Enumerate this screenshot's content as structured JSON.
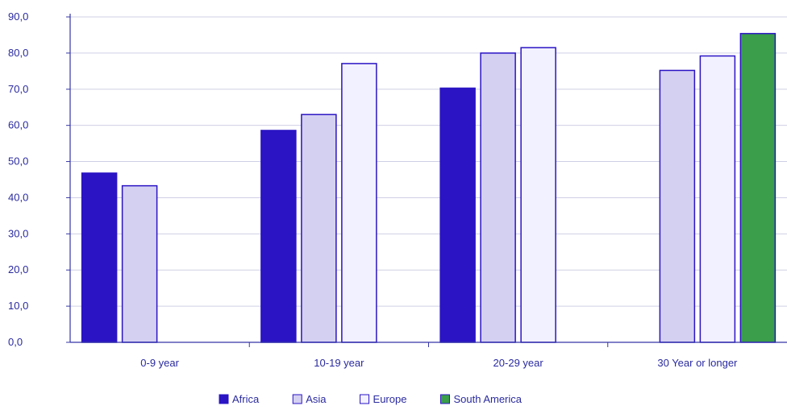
{
  "chart_data": {
    "type": "bar",
    "title": "",
    "xlabel": "",
    "ylabel": "",
    "ylim": [
      0,
      90
    ],
    "yticks": [
      "0,0",
      "10,0",
      "20,0",
      "30,0",
      "40,0",
      "50,0",
      "60,0",
      "70,0",
      "80,0",
      "90,0"
    ],
    "categories": [
      "0-9 year",
      "10-19 year",
      "20-29 year",
      "30 Year or longer"
    ],
    "series": [
      {
        "name": "Africa",
        "values": [
          46.8,
          58.6,
          70.3,
          null
        ],
        "color": "#2a14c4"
      },
      {
        "name": "Asia",
        "values": [
          43.3,
          63.0,
          80.0,
          75.2
        ],
        "color": "#d4d0f2"
      },
      {
        "name": "Europe",
        "values": [
          null,
          77.1,
          81.5,
          79.2
        ],
        "color": "#f2f1ff"
      },
      {
        "name": "South America",
        "values": [
          null,
          null,
          null,
          85.4
        ],
        "color": "#3a9e4a"
      }
    ],
    "grid": true,
    "legend_position": "bottom"
  }
}
